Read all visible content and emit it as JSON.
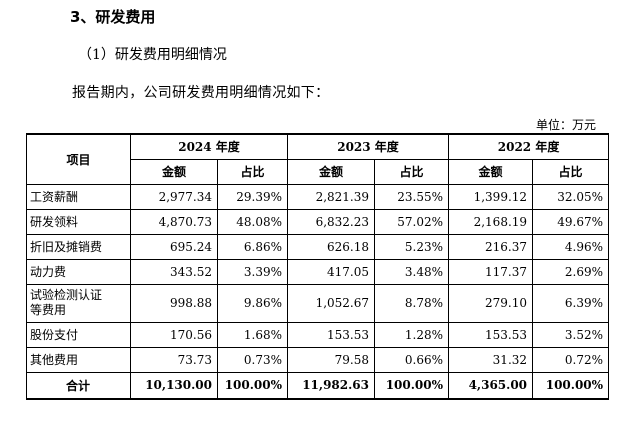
{
  "section": {
    "heading": "3、研发费用",
    "subheading": "（1）研发费用明细情况",
    "paragraph": "报告期内，公司研发费用明细情况如下：",
    "unit": "单位：万元"
  },
  "table": {
    "item_header": "项目",
    "years": [
      "2024 年度",
      "2023 年度",
      "2022 年度"
    ],
    "sub_headers": [
      "金额",
      "占比"
    ],
    "rows": [
      {
        "label": "工资薪酬",
        "values": [
          "2,977.34",
          "29.39%",
          "2,821.39",
          "23.55%",
          "1,399.12",
          "32.05%"
        ]
      },
      {
        "label": "研发领料",
        "values": [
          "4,870.73",
          "48.08%",
          "6,832.23",
          "57.02%",
          "2,168.19",
          "49.67%"
        ]
      },
      {
        "label": "折旧及摊销费",
        "values": [
          "695.24",
          "6.86%",
          "626.18",
          "5.23%",
          "216.37",
          "4.96%"
        ]
      },
      {
        "label": "动力费",
        "values": [
          "343.52",
          "3.39%",
          "417.05",
          "3.48%",
          "117.37",
          "2.69%"
        ]
      },
      {
        "label": "试验检测认证等费用",
        "label_line1": "试验检测认证",
        "label_line2": "等费用",
        "values": [
          "998.88",
          "9.86%",
          "1,052.67",
          "8.78%",
          "279.10",
          "6.39%"
        ]
      },
      {
        "label": "股份支付",
        "values": [
          "170.56",
          "1.68%",
          "153.53",
          "1.28%",
          "153.53",
          "3.52%"
        ]
      },
      {
        "label": "其他费用",
        "values": [
          "73.73",
          "0.73%",
          "79.58",
          "0.66%",
          "31.32",
          "0.72%"
        ]
      }
    ],
    "total": {
      "label": "合计",
      "values": [
        "10,130.00",
        "100.00%",
        "11,982.63",
        "100.00%",
        "4,365.00",
        "100.00%"
      ]
    }
  }
}
